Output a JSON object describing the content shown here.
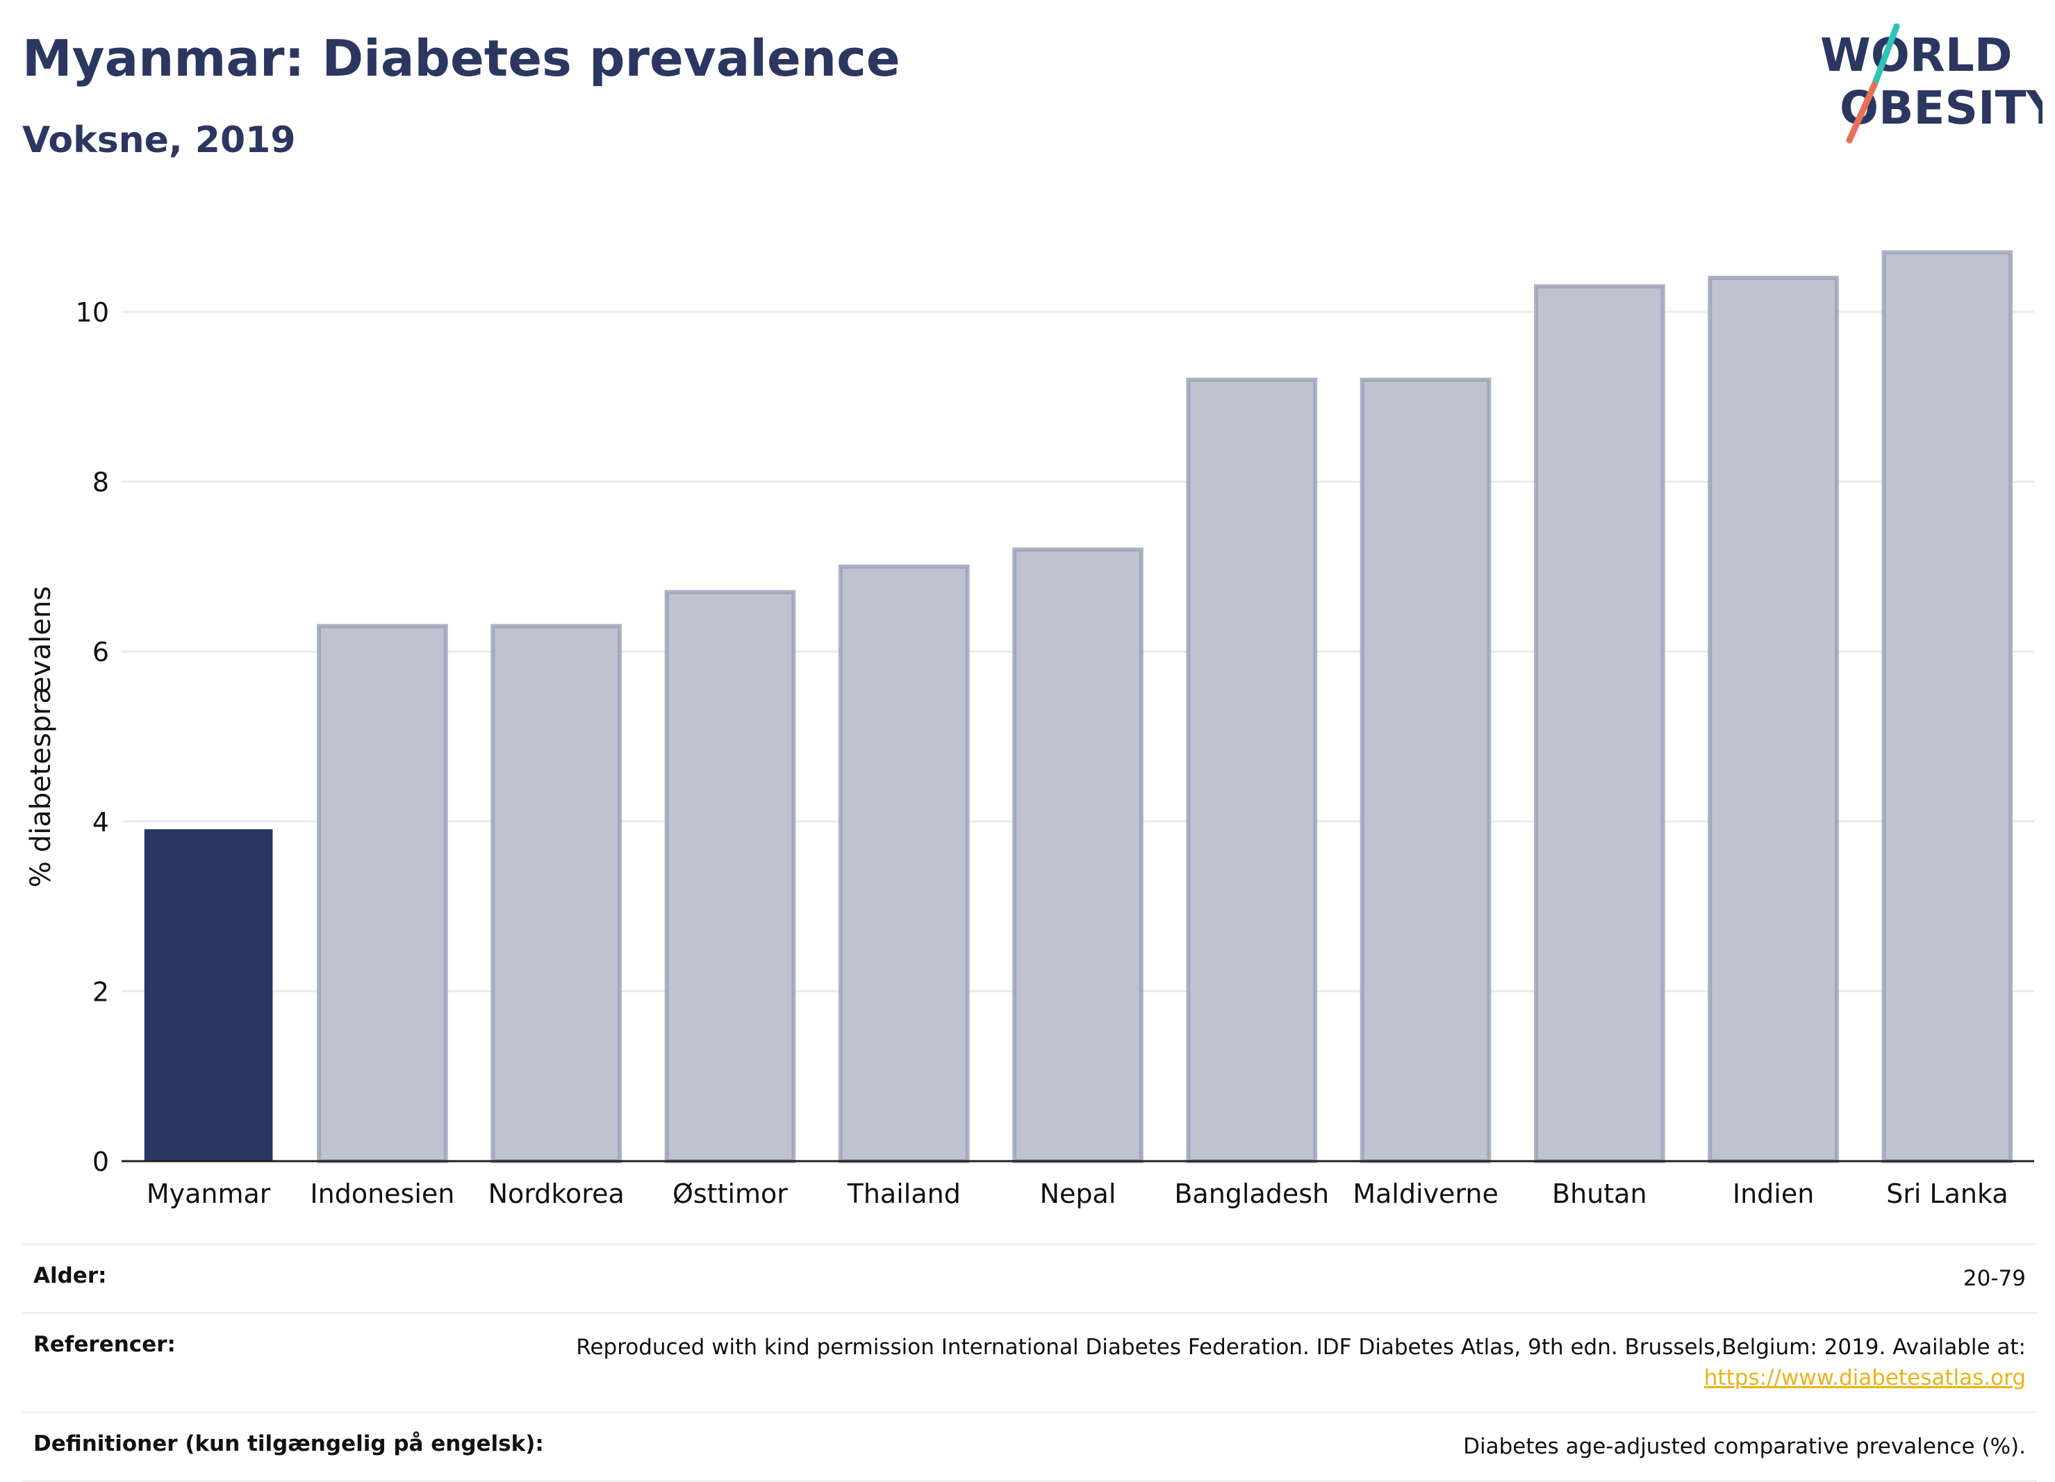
{
  "header": {
    "title": "Myanmar: Diabetes prevalence",
    "subtitle": "Voksne, 2019"
  },
  "logo": {
    "line1": "WORLD",
    "line2": "OBESITY"
  },
  "colors": {
    "highlight": "#2b3761",
    "other": "#bfc3d0",
    "other_border": "#9aa0b6",
    "accent_teal": "#2ec4b6",
    "accent_coral": "#e8705a"
  },
  "chart_data": {
    "type": "bar",
    "title": "Myanmar: Diabetes prevalence",
    "subtitle": "Voksne, 2019",
    "xlabel": "",
    "ylabel": "% diabetesprævalens",
    "ylim": [
      0,
      11.3
    ],
    "yticks": [
      0,
      2,
      4,
      6,
      8,
      10
    ],
    "grid": true,
    "categories": [
      "Myanmar",
      "Indonesien",
      "Nordkorea",
      "Østtimor",
      "Thailand",
      "Nepal",
      "Bangladesh",
      "Maldiverne",
      "Bhutan",
      "Indien",
      "Sri Lanka"
    ],
    "values": [
      3.9,
      6.3,
      6.3,
      6.7,
      7.0,
      7.2,
      9.2,
      9.2,
      10.3,
      10.4,
      10.7
    ],
    "highlight": "Myanmar"
  },
  "info": {
    "age_label": "Alder:",
    "age_value": "20-79",
    "ref_label": "Referencer:",
    "ref_text": "Reproduced with kind permission International Diabetes Federation. IDF Diabetes Atlas, 9th edn. Brussels,Belgium: 2019. Available at:",
    "ref_link": "https://www.diabetesatlas.org",
    "def_label": "Definitioner (kun tilgængelig på engelsk):",
    "def_value": "Diabetes age-adjusted comparative prevalence (%)."
  }
}
